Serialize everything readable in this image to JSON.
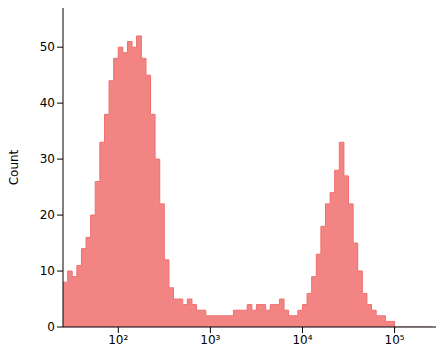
{
  "chart_data": {
    "type": "histogram",
    "y_label": "Count",
    "log": "x",
    "color": "#f06e6e",
    "bins": [
      25.1,
      28.2,
      31.6,
      35.5,
      39.8,
      44.7,
      50.1,
      56.2,
      63.1,
      70.8,
      79.4,
      89.1,
      100,
      112,
      126,
      141,
      158,
      178,
      200,
      224,
      251,
      282,
      316,
      355,
      398,
      447,
      501,
      562,
      631,
      708,
      794,
      891,
      1000,
      1122,
      1259,
      1413,
      1585,
      1778,
      1995,
      2239,
      2512,
      2818,
      3162,
      3548,
      3981,
      4467,
      5012,
      5623,
      6310,
      7079,
      7943,
      8913,
      10000,
      11220,
      12590,
      14130,
      15850,
      17780,
      19950,
      22390,
      25120,
      28180,
      31620,
      35480,
      39810,
      44670,
      50120,
      56230,
      63100,
      70790,
      79430,
      89130,
      100000,
      112200,
      125900,
      141300,
      158500,
      177800,
      199500,
      223900,
      251200
    ],
    "counts": [
      8,
      10,
      9,
      11,
      14,
      16,
      20,
      26,
      33,
      38,
      44,
      48,
      50,
      49,
      51,
      50,
      52,
      48,
      45,
      38,
      30,
      22,
      12,
      7,
      5,
      5,
      4,
      5,
      4,
      3,
      3,
      2,
      2,
      2,
      2,
      2,
      2,
      3,
      3,
      3,
      4,
      3,
      4,
      4,
      3,
      4,
      4,
      5,
      3,
      2,
      2,
      3,
      4,
      6,
      9,
      13,
      18,
      22,
      24,
      28,
      33,
      27,
      22,
      15,
      10,
      6,
      4,
      3,
      2,
      2,
      1,
      1,
      0,
      0,
      0,
      0,
      0,
      0,
      0,
      0
    ],
    "xlim": [
      25.1,
      281800
    ],
    "ylim": [
      0,
      57
    ],
    "xticks": [
      {
        "value": 100,
        "label": "10²"
      },
      {
        "value": 1000,
        "label": "10³"
      },
      {
        "value": 10000,
        "label": "10⁴"
      },
      {
        "value": 100000,
        "label": "10⁵"
      }
    ],
    "yticks": [
      0,
      10,
      20,
      30,
      40,
      50
    ]
  }
}
